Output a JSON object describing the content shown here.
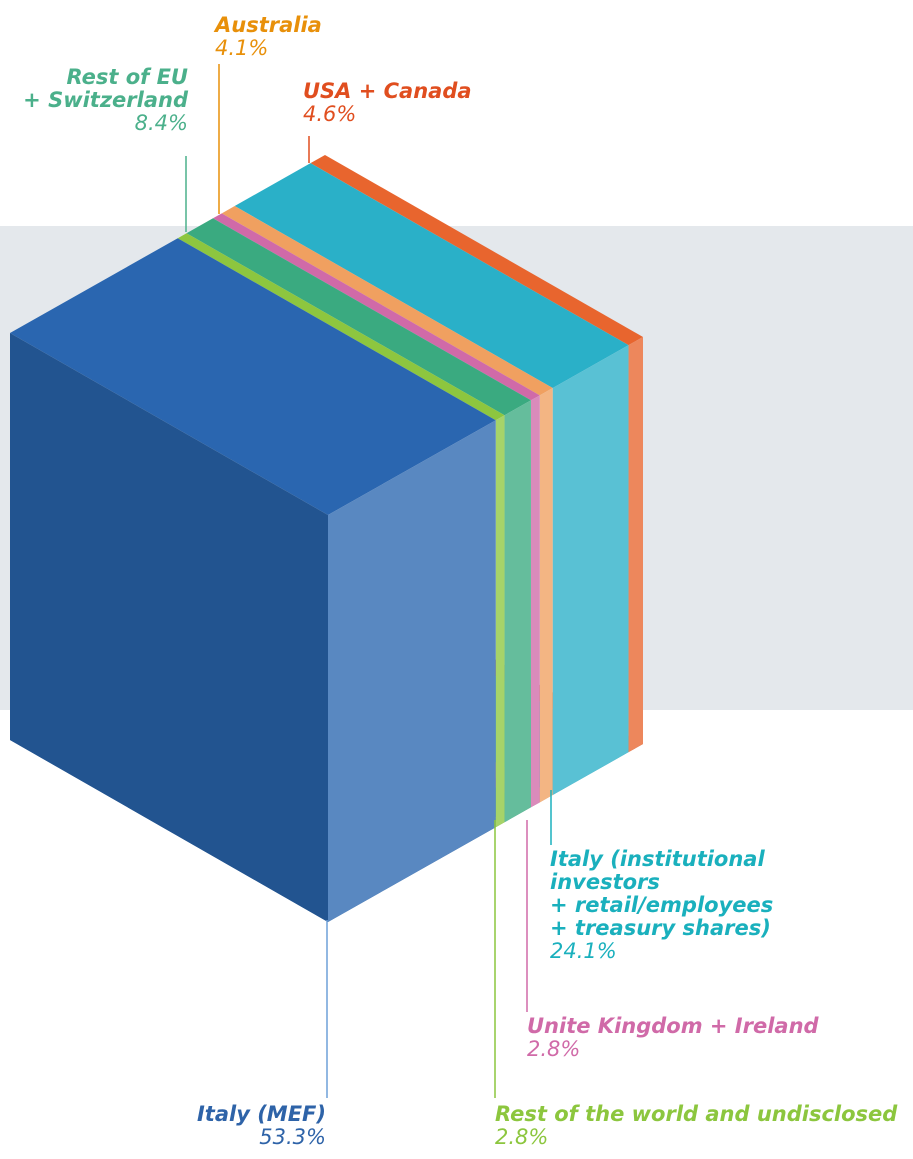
{
  "chart_data": {
    "type": "cube",
    "segments": [
      {
        "name": "Italy (MEF)",
        "value": 53.3,
        "value_label": "53.3%",
        "color": "#2a66b0"
      },
      {
        "name": "Rest of the world and undisclosed",
        "value": 2.8,
        "value_label": "2.8%",
        "color": "#8dc63f"
      },
      {
        "name": "Rest of EU\n+ Switzerland",
        "value": 8.4,
        "value_label": "8.4%",
        "color": "#3aaa80"
      },
      {
        "name": "Unite Kingdom + Ireland",
        "value": 2.8,
        "value_label": "2.8%",
        "color": "#d06aa8"
      },
      {
        "name": "Australia",
        "value": 4.1,
        "value_label": "4.1%",
        "color": "#f0a060"
      },
      {
        "name": "Italy (institutional\ninvestors\n+ retail/employees\n+ treasury shares)",
        "value": 24.1,
        "value_label": "24.1%",
        "color": "#2ab0c8"
      },
      {
        "name": "USA + Canada",
        "value": 4.6,
        "value_label": "4.6%",
        "color": "#e8652e"
      }
    ]
  }
}
